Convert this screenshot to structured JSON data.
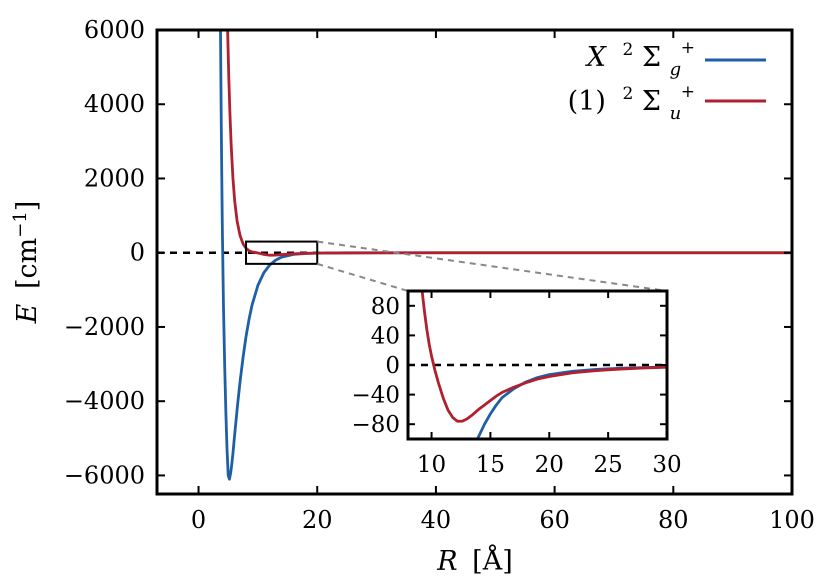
{
  "chart_data": [
    {
      "type": "line",
      "panel": "main",
      "xlabel": "R [Å]",
      "ylabel": "E [cm⁻¹]",
      "xlim": [
        -7,
        100
      ],
      "ylim": [
        -6500,
        6000
      ],
      "xticks": [
        0,
        20,
        40,
        60,
        80,
        100
      ],
      "yticks": [
        6000,
        4000,
        2000,
        0,
        -2000,
        -4000,
        -6000
      ],
      "xtick_labels": [
        "0",
        "20",
        "40",
        "60",
        "80",
        "100"
      ],
      "ytick_labels": [
        "6000",
        "4000",
        "2000",
        "0",
        "−2000",
        "−4000",
        "−6000"
      ],
      "grid": false,
      "legend_position": "top-right",
      "reference_line": {
        "y": 0,
        "style": "dashed",
        "color": "#000000"
      },
      "zoom_box": {
        "x": [
          8,
          20
        ],
        "y": [
          -300,
          300
        ]
      },
      "series": [
        {
          "name": "X ²Σg⁺",
          "color": "#1f5fa6",
          "x": [
            3.7,
            3.8,
            3.9,
            4.0,
            4.2,
            4.4,
            4.6,
            4.8,
            5.0,
            5.2,
            5.4,
            5.6,
            5.8,
            6.0,
            6.3,
            6.6,
            7.0,
            7.5,
            8.0,
            8.5,
            9.0,
            10,
            11,
            12,
            13,
            14,
            16,
            18,
            20,
            25,
            30,
            40,
            60,
            80,
            100
          ],
          "y": [
            6000,
            4000,
            2290,
            790,
            -1450,
            -3000,
            -4280,
            -5300,
            -6000,
            -6100,
            -5950,
            -5700,
            -5400,
            -5050,
            -4550,
            -4060,
            -3470,
            -2820,
            -2260,
            -1800,
            -1420,
            -880,
            -540,
            -330,
            -200,
            -120,
            -45,
            -20,
            -10,
            -3,
            -1,
            0,
            0,
            0,
            0
          ]
        },
        {
          "name": "(1) ²Σu⁺",
          "color": "#b0202e",
          "x": [
            4.9,
            5.1,
            5.3,
            5.5,
            5.8,
            6.1,
            6.5,
            7.0,
            7.5,
            8.0,
            8.5,
            9.0,
            10,
            11,
            12,
            13,
            14,
            16,
            18,
            20,
            25,
            30,
            40,
            60,
            80,
            100
          ],
          "y": [
            6000,
            4700,
            3700,
            2900,
            2000,
            1380,
            850,
            460,
            240,
            120,
            55,
            22,
            -6,
            -45,
            -67,
            -64,
            -50,
            -30,
            -18,
            -11,
            -6,
            -4,
            -1,
            0,
            0,
            0
          ]
        }
      ]
    },
    {
      "type": "line",
      "panel": "inset",
      "xlim": [
        8,
        30
      ],
      "ylim": [
        -100,
        100
      ],
      "xticks": [
        10,
        15,
        20,
        25,
        30
      ],
      "yticks": [
        80,
        40,
        0,
        -40,
        -80
      ],
      "xtick_labels": [
        "10",
        "15",
        "20",
        "25",
        "30"
      ],
      "ytick_labels": [
        "80",
        "40",
        "0",
        "−40",
        "−80"
      ],
      "reference_line": {
        "y": 0,
        "style": "dashed",
        "color": "#000000"
      },
      "series": [
        {
          "name": "X ²Σg⁺",
          "color": "#1f5fa6",
          "x": [
            13.9,
            14.5,
            15,
            15.5,
            16,
            17,
            18,
            19,
            20,
            22,
            24,
            26,
            28,
            30
          ],
          "y": [
            -100,
            -80,
            -66,
            -54,
            -44,
            -32,
            -23,
            -17,
            -13,
            -8.5,
            -6,
            -4.5,
            -3.5,
            -2.6
          ]
        },
        {
          "name": "(1) ²Σu⁺",
          "color": "#b0202e",
          "x": [
            9.2,
            9.4,
            9.6,
            9.8,
            10.0,
            10.3,
            10.6,
            11.0,
            11.4,
            11.8,
            12.2,
            12.6,
            13.0,
            13.5,
            14.0,
            14.5,
            15.0,
            15.5,
            16.0,
            17,
            18,
            19,
            20,
            22,
            24,
            26,
            28,
            30
          ],
          "y": [
            100,
            72,
            48,
            28,
            12,
            -8,
            -25,
            -45,
            -61,
            -71,
            -76,
            -76,
            -73,
            -67,
            -60,
            -54,
            -48,
            -42,
            -37,
            -30,
            -24,
            -19,
            -15.5,
            -10.5,
            -7.5,
            -5.5,
            -4,
            -3
          ]
        }
      ]
    }
  ],
  "legend": {
    "entries": [
      {
        "symbol": "X",
        "term": "Σ",
        "multiplicity": "2",
        "sub": "g",
        "sup": "+",
        "color": "#1f5fa6"
      },
      {
        "symbol": "(1)",
        "term": "Σ",
        "multiplicity": "2",
        "sub": "u",
        "sup": "+",
        "color": "#b0202e"
      }
    ]
  },
  "axis_text": {
    "x_symbol": "R",
    "x_unit": "Å",
    "y_symbol": "E",
    "y_unit_base": "cm",
    "y_unit_exp": "−1"
  }
}
